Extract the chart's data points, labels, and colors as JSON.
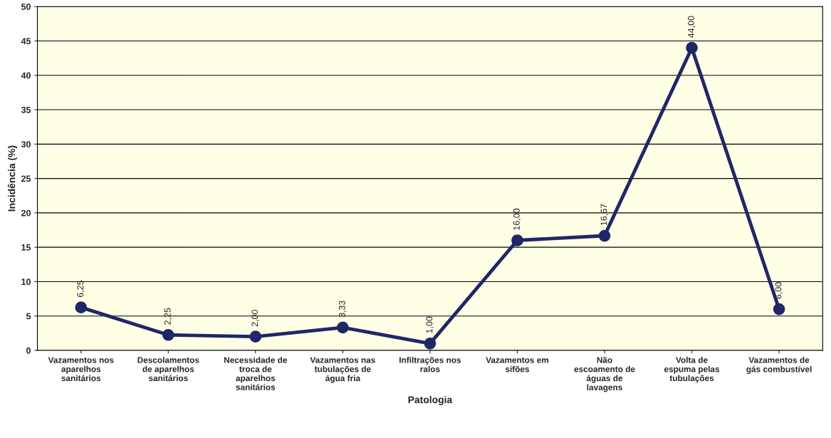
{
  "chart_data": {
    "type": "line",
    "xlabel": "Patologia",
    "ylabel": "Incidência (%)",
    "categories": [
      "Vazamentos nos\naparelhos\nsanitários",
      "Descolamentos\nde aparelhos\nsanitários",
      "Necessidade de\ntroca de\naparelhos\nsanitários",
      "Vazamentos nas\ntubulações de\nágua fria",
      "Infiltrações nos\nralos",
      "Vazamentos em\nsifões",
      "Não\nescoamento de\náguas de\nlavagens",
      "Volta de\nespuma pelas\ntubulações",
      "Vazamentos de\ngás combustível"
    ],
    "series": [
      {
        "color": "#1f2766",
        "values": [
          6.25,
          2.25,
          2.0,
          3.33,
          1.0,
          16.0,
          16.67,
          44.0,
          6.0
        ],
        "value_labels": [
          "6,25",
          "2,25",
          "2,00",
          "3,33",
          "1,00",
          "16,00",
          "16,67",
          "44,00",
          "6,00"
        ]
      }
    ],
    "ylim": [
      0,
      50
    ],
    "yticks": [
      0,
      5,
      10,
      15,
      20,
      25,
      30,
      35,
      40,
      45,
      50
    ],
    "grid": "y",
    "marker": "circle",
    "line_style": "solid"
  }
}
